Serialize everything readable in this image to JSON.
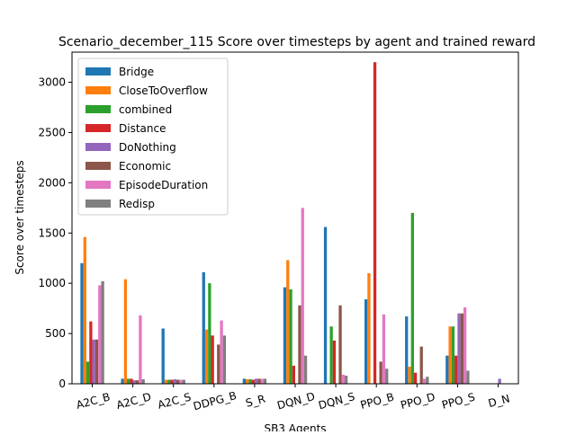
{
  "chart_data": {
    "type": "bar",
    "title": "Scenario_december_115 Score over timesteps by agent and trained reward",
    "xlabel": "SB3 Agents",
    "ylabel": "Score over timesteps",
    "ylim": [
      0,
      3300
    ],
    "yticks": [
      0,
      500,
      1000,
      1500,
      2000,
      2500,
      3000
    ],
    "legend_position": "top-left",
    "categories": [
      "A2C_B",
      "A2C_D",
      "A2C_S",
      "DDPG_B",
      "S_R",
      "DQN_D",
      "DQN_S",
      "PPO_B",
      "PPO_D",
      "PPO_S",
      "D_N"
    ],
    "series": [
      {
        "name": "Bridge",
        "color": "#1f77b4",
        "values": [
          1200,
          50,
          550,
          1110,
          50,
          960,
          1560,
          840,
          670,
          280,
          0
        ]
      },
      {
        "name": "CloseToOverflow",
        "color": "#ff7f0e",
        "values": [
          1460,
          1040,
          40,
          540,
          45,
          1230,
          0,
          1100,
          170,
          570,
          0
        ]
      },
      {
        "name": "combined",
        "color": "#2ca02c",
        "values": [
          220,
          50,
          40,
          1000,
          45,
          940,
          570,
          0,
          1700,
          570,
          0
        ]
      },
      {
        "name": "Distance",
        "color": "#d62728",
        "values": [
          620,
          50,
          40,
          480,
          40,
          180,
          430,
          3200,
          110,
          280,
          0
        ]
      },
      {
        "name": "DoNothing",
        "color": "#9467bd",
        "values": [
          440,
          35,
          45,
          0,
          50,
          0,
          0,
          0,
          0,
          700,
          50
        ]
      },
      {
        "name": "Economic",
        "color": "#8c564b",
        "values": [
          440,
          35,
          40,
          390,
          50,
          780,
          780,
          220,
          370,
          700,
          0
        ]
      },
      {
        "name": "EpisodeDuration",
        "color": "#e377c2",
        "values": [
          980,
          680,
          40,
          630,
          50,
          1750,
          90,
          690,
          50,
          760,
          0
        ]
      },
      {
        "name": "Redisp",
        "color": "#7f7f7f",
        "values": [
          1020,
          45,
          40,
          480,
          50,
          280,
          80,
          150,
          70,
          130,
          0
        ]
      }
    ]
  }
}
